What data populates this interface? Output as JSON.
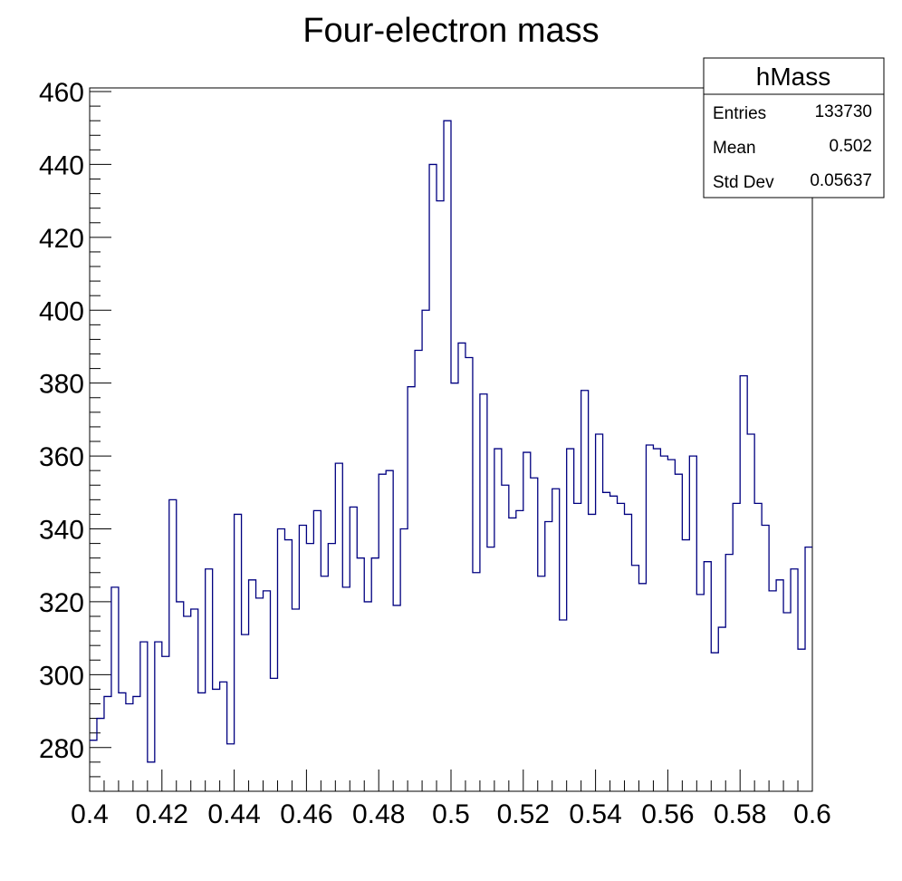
{
  "chart_data": {
    "type": "histogram",
    "title": "Four-electron mass",
    "xlabel": "",
    "ylabel": "",
    "xlim": [
      0.4,
      0.6
    ],
    "ylim": [
      268,
      461
    ],
    "bin_width": 0.002,
    "x_ticks": [
      0.4,
      0.42,
      0.44,
      0.46,
      0.48,
      0.5,
      0.52,
      0.54,
      0.56,
      0.58,
      0.6
    ],
    "x_tick_labels": [
      "0.4",
      "0.42",
      "0.44",
      "0.46",
      "0.48",
      "0.5",
      "0.52",
      "0.54",
      "0.56",
      "0.58",
      "0.6"
    ],
    "y_ticks": [
      280,
      300,
      320,
      340,
      360,
      380,
      400,
      420,
      440,
      460
    ],
    "y_tick_labels": [
      "280",
      "300",
      "320",
      "340",
      "360",
      "380",
      "400",
      "420",
      "440",
      "460"
    ],
    "grid": false,
    "line_color": "#000080",
    "series": [
      {
        "values": [
          282,
          288,
          294,
          324,
          295,
          292,
          294,
          309,
          276,
          309,
          305,
          348,
          320,
          316,
          318,
          295,
          329,
          296,
          298,
          281,
          344,
          311,
          326,
          321,
          323,
          299,
          340,
          337,
          318,
          341,
          336,
          345,
          327,
          336,
          358,
          324,
          346,
          332,
          320,
          332,
          355,
          356,
          319,
          340,
          379,
          389,
          400,
          440,
          430,
          452,
          380,
          391,
          387,
          328,
          377,
          335,
          362,
          352,
          343,
          345,
          361,
          354,
          327,
          342,
          351,
          315,
          362,
          347,
          378,
          344,
          366,
          350,
          349,
          347,
          344,
          330,
          325,
          363,
          362,
          360,
          359,
          355,
          337,
          360,
          322,
          331,
          306,
          313,
          333,
          347,
          382,
          366,
          347,
          341,
          323,
          326,
          317,
          329,
          307,
          335
        ]
      }
    ],
    "stats_box": {
      "name": "hMass",
      "entries_label": "Entries",
      "entries_value": "133730",
      "mean_label": "Mean",
      "mean_value": "0.502",
      "stddev_label": "Std Dev",
      "stddev_value": "0.05637"
    }
  }
}
